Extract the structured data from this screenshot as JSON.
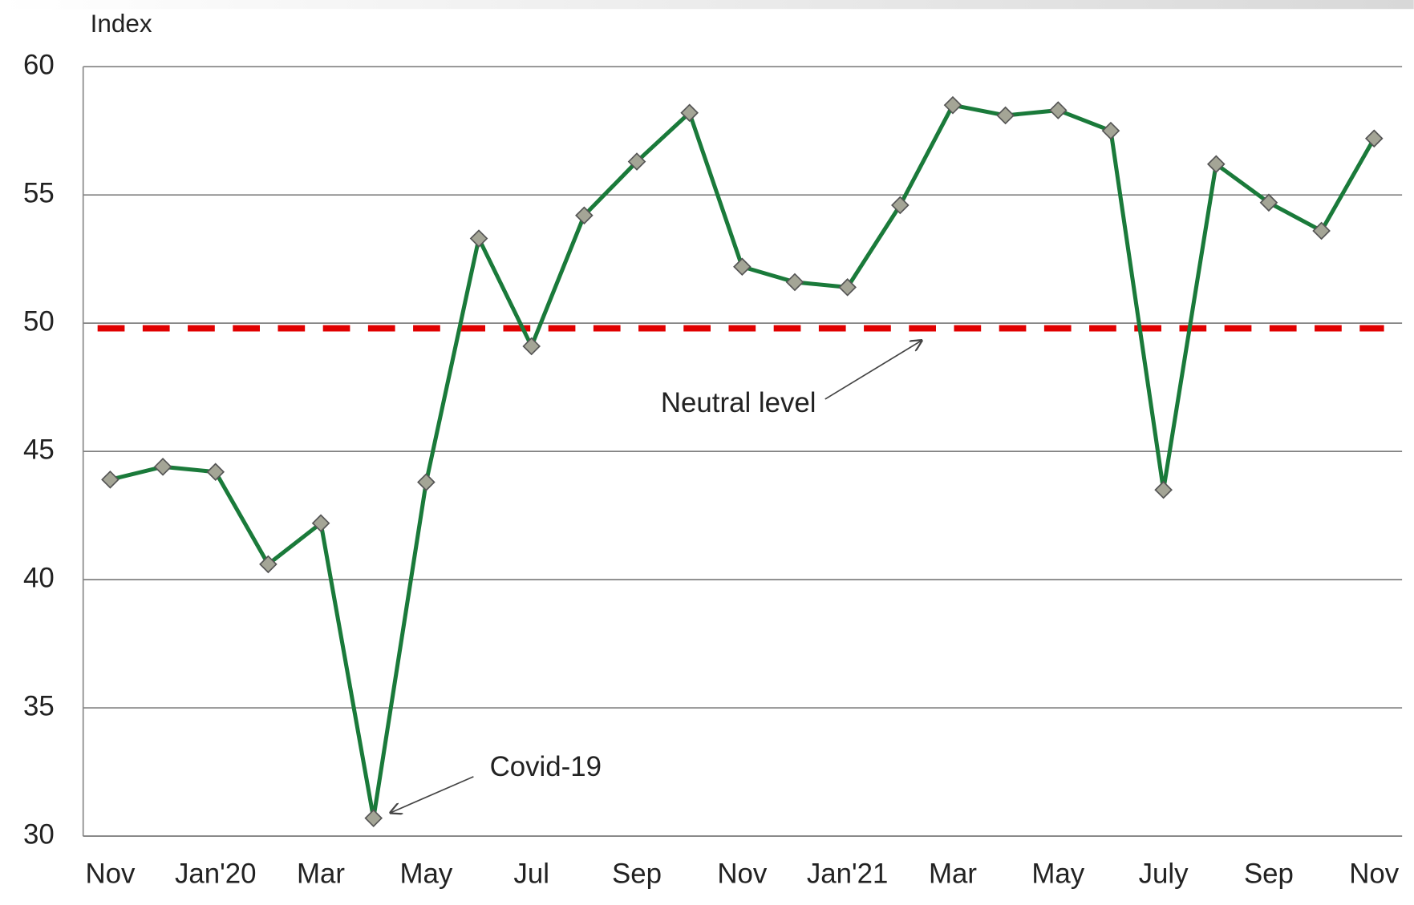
{
  "chart_data": {
    "type": "line",
    "y_axis_label": "Index",
    "categories": [
      "Nov",
      null,
      "Jan'20",
      null,
      "Mar",
      null,
      "May",
      null,
      "Jul",
      null,
      "Sep",
      null,
      "Nov",
      null,
      "Jan'21",
      null,
      "Mar",
      null,
      "May",
      null,
      "July",
      null,
      "Sep",
      null,
      "Nov"
    ],
    "series": [
      {
        "color": "#1a7a3a",
        "marker_color": "#a4a596",
        "values": [
          43.9,
          44.4,
          44.2,
          40.6,
          42.2,
          30.7,
          43.8,
          53.3,
          49.1,
          54.2,
          56.3,
          58.2,
          52.2,
          51.6,
          51.4,
          54.6,
          58.5,
          58.1,
          58.3,
          57.5,
          43.5,
          56.2,
          54.7,
          53.6,
          57.2
        ]
      }
    ],
    "ylim": [
      30,
      60
    ],
    "yticks": [
      30,
      35,
      40,
      45,
      50,
      55,
      60
    ],
    "grid": true,
    "reference_line": {
      "value": 49.8,
      "color": "#e00000",
      "label": "Neutral level"
    },
    "annotations": [
      {
        "text": "Covid-19",
        "category_index": 5
      }
    ]
  }
}
